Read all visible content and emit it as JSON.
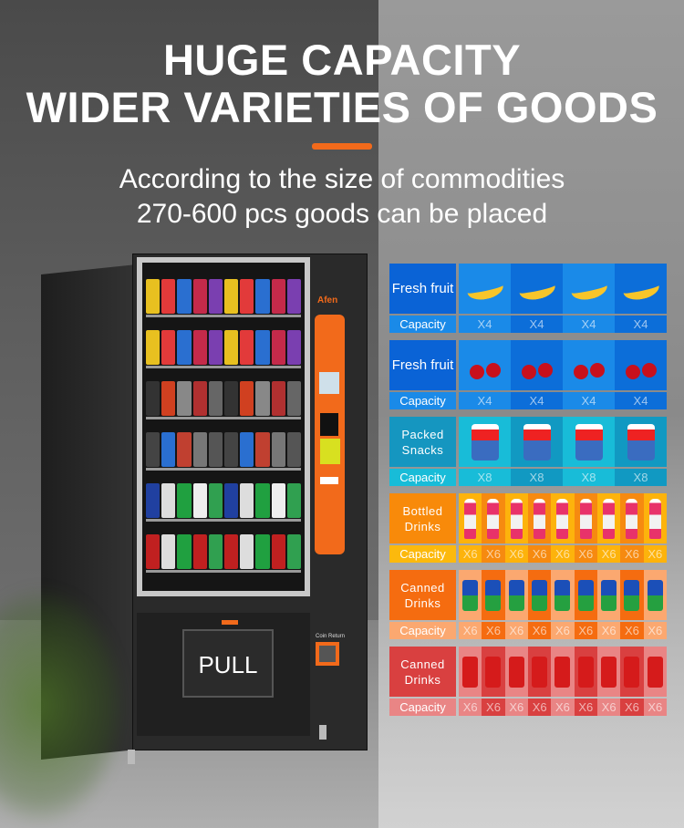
{
  "header": {
    "title_line1": "HUGE CAPACITY",
    "title_line2": "WIDER VARIETIES OF GOODS",
    "subtitle_line1": "According to the size of commodities",
    "subtitle_line2": "270-600 pcs goods can be placed",
    "accent_color": "#f26a1b"
  },
  "machine": {
    "brand": "Afen",
    "pull_label": "PULL",
    "coin_return_label": "Coin Return"
  },
  "capacity_table": [
    {
      "label": "Fresh fruit",
      "capacity_label": "Capacity",
      "icon": "banana-icon",
      "count": 4,
      "value": "X4",
      "colors": {
        "label": "#0a63d6",
        "cell_a": "#1a8ae8",
        "cell_b": "#0c6ed9",
        "cap_label": "#1a8ae8"
      }
    },
    {
      "label": "Fresh fruit",
      "capacity_label": "Capacity",
      "icon": "cherry-icon",
      "count": 4,
      "value": "X4",
      "colors": {
        "label": "#0a63d6",
        "cell_a": "#1a8ae8",
        "cell_b": "#0c6ed9",
        "cap_label": "#1a8ae8"
      }
    },
    {
      "label": "Packed Snacks",
      "capacity_label": "Capacity",
      "icon": "snack-bag-icon",
      "count": 4,
      "value": "X8",
      "colors": {
        "label": "#1596c0",
        "cell_a": "#18bcd8",
        "cell_b": "#1199c2",
        "cap_label": "#18bcd8"
      }
    },
    {
      "label": "Bottled Drinks",
      "capacity_label": "Capacity",
      "icon": "bottle-icon",
      "count": 9,
      "value": "X6",
      "colors": {
        "label": "#f88a0a",
        "cell_a": "#fdb30c",
        "cell_b": "#f68a10",
        "cap_label": "#fcb90d"
      }
    },
    {
      "label": "Canned Drinks",
      "capacity_label": "Capacity",
      "icon": "sprite-can-icon",
      "count": 9,
      "value": "X6",
      "colors": {
        "label": "#f56c10",
        "cell_a": "#fba870",
        "cell_b": "#f56c10",
        "cap_label": "#fba870"
      }
    },
    {
      "label": "Canned Drinks",
      "capacity_label": "Capacity",
      "icon": "cola-can-icon",
      "count": 9,
      "value": "X6",
      "colors": {
        "label": "#d94040",
        "cell_a": "#e98585",
        "cell_b": "#d94040",
        "cap_label": "#e98585"
      }
    }
  ]
}
